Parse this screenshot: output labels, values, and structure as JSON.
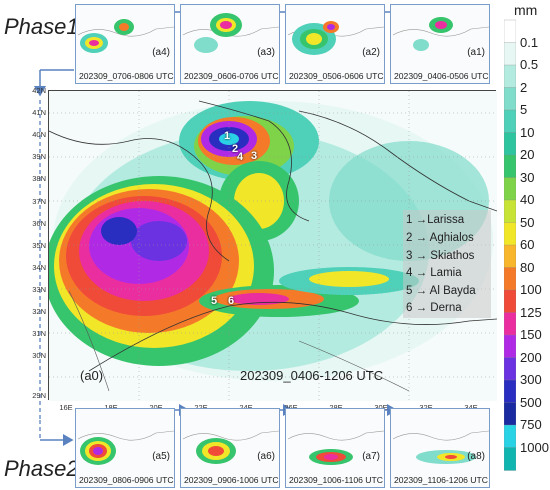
{
  "phases": {
    "phase1": "Phase1",
    "phase2": "Phase2"
  },
  "panels_top": [
    {
      "label": "(a4)",
      "time": "202309_0706-0806 UTC"
    },
    {
      "label": "(a3)",
      "time": "202309_0606-0706 UTC"
    },
    {
      "label": "(a2)",
      "time": "202309_0506-0606 UTC"
    },
    {
      "label": "(a1)",
      "time": "202309_0406-0506 UTC"
    }
  ],
  "panels_bottom": [
    {
      "label": "(a5)",
      "time": "202309_0806-0906 UTC"
    },
    {
      "label": "(a6)",
      "time": "202309_0906-1006 UTC"
    },
    {
      "label": "(a7)",
      "time": "202309_1006-1106 UTC"
    },
    {
      "label": "(a8)",
      "time": "202309_1106-1206 UTC"
    }
  ],
  "main": {
    "label": "(a0)",
    "time": "202309_0406-1206 UTC"
  },
  "locations": [
    {
      "id": "1",
      "text": "1 →Larissa"
    },
    {
      "id": "2",
      "text": "2 → Aghialos"
    },
    {
      "id": "3",
      "text": "3 → Skiathos"
    },
    {
      "id": "4",
      "text": "4 → Lamia"
    },
    {
      "id": "5",
      "text": "5 → Al Bayda"
    },
    {
      "id": "6",
      "text": "6 → Derna"
    }
  ],
  "lat_ticks": [
    "42N",
    "41N",
    "40N",
    "39N",
    "38N",
    "37N",
    "36N",
    "35N",
    "34N",
    "33N",
    "32N",
    "31N",
    "30N",
    "29N"
  ],
  "lon_ticks": [
    "16E",
    "18E",
    "20E",
    "22E",
    "24E",
    "26E",
    "28E",
    "30E",
    "32E",
    "34E"
  ],
  "colorbar": {
    "unit": "mm",
    "labels": [
      "0.1",
      "0.5",
      "2",
      "5",
      "10",
      "20",
      "30",
      "40",
      "50",
      "60",
      "80",
      "100",
      "125",
      "150",
      "200",
      "300",
      "500",
      "750",
      "1000"
    ],
    "colors": [
      "#ffffff",
      "#e6f7f4",
      "#b3ebe0",
      "#80dccb",
      "#4fd0b8",
      "#2ec4a0",
      "#36c46c",
      "#7ed348",
      "#c6e336",
      "#f2e629",
      "#f7b62b",
      "#f47a2a",
      "#f04a38",
      "#ea2ea0",
      "#b02ae6",
      "#6a32e0",
      "#2a2ec0",
      "#1a2aa0",
      "#2ad2e6",
      "#11b5b0"
    ]
  }
}
